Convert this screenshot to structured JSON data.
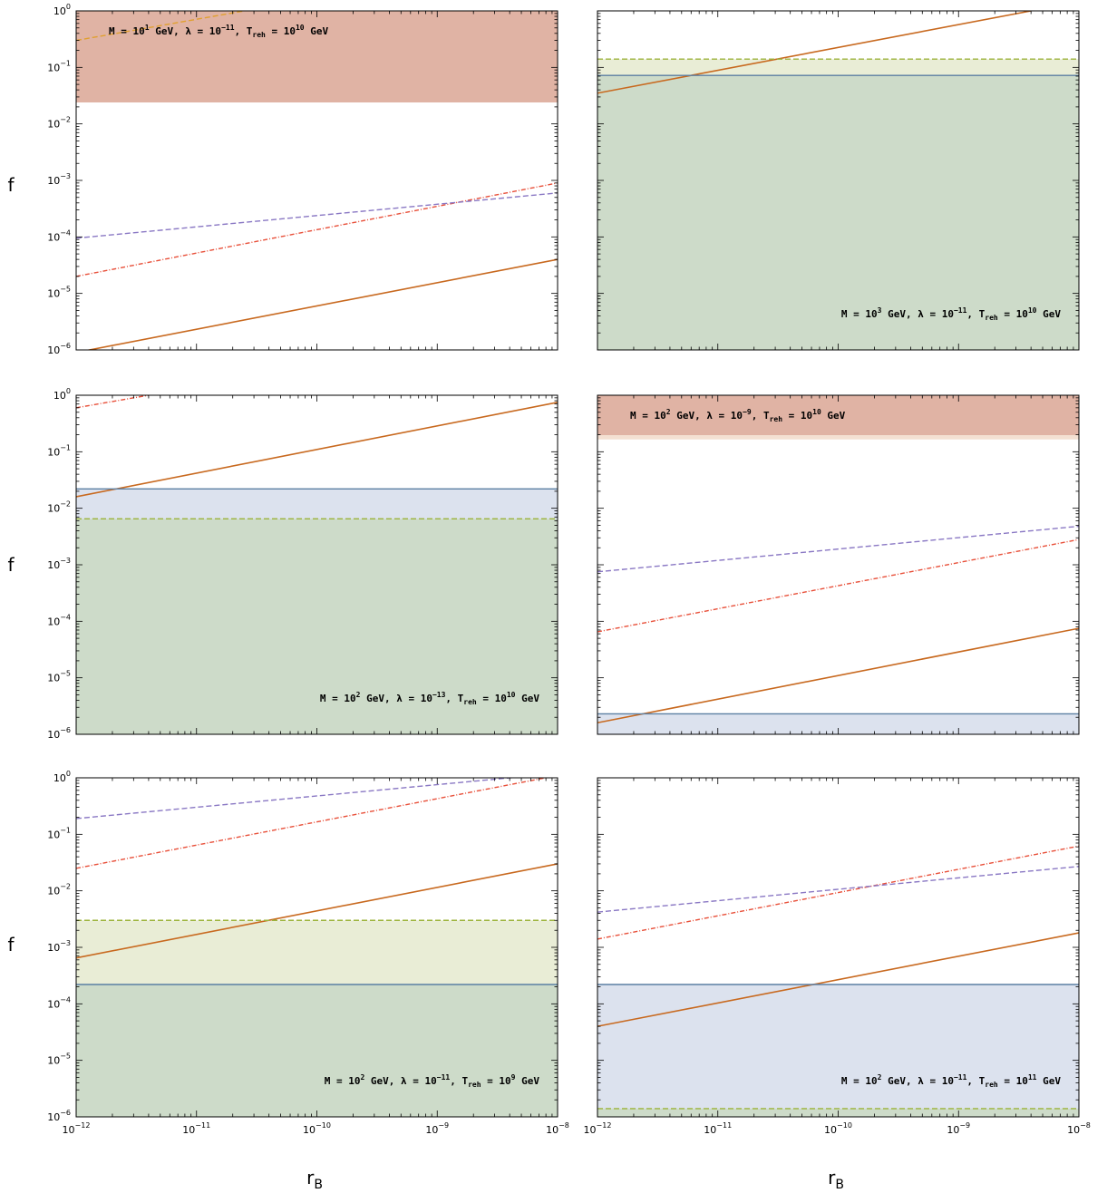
{
  "figure": {
    "xlabel_main": "r",
    "xlabel_sub": "B",
    "ylabel": "f"
  },
  "colors": {
    "dark_region": "#e0b3a4",
    "orange_region": "#f0c4a8",
    "light_region": "#f4e0d2",
    "green_region": "#cddbc9",
    "blue_region": "#dce2ee",
    "lightgreen_region": "#e9edd6",
    "brown_line": "#c8691f",
    "red_dash": "#e8503a",
    "purple_dash": "#8a78c4",
    "green_dash": "#9cb33c",
    "blue_line": "#5b7fa3",
    "gold_dash": "#e0a030"
  },
  "chart_data": [
    {
      "type": "area",
      "xscale": "log",
      "yscale": "log",
      "xlim": [
        1e-12,
        1e-08
      ],
      "ylim": [
        1e-06,
        1
      ],
      "annotation": [
        "M = 10",
        "1",
        " GeV,  λ = 10",
        "−11",
        ",  T",
        "reh",
        " = 10",
        "10",
        " GeV"
      ],
      "annotation_pos": "top-left",
      "series": [
        {
          "kind": "line",
          "style": "brown-solid",
          "x": [
            1e-12,
            1e-08
          ],
          "y": [
            9e-07,
            4e-05
          ]
        },
        {
          "kind": "line",
          "style": "red-dashdot",
          "x": [
            1e-12,
            1e-08
          ],
          "y": [
            2e-05,
            0.0009
          ]
        },
        {
          "kind": "line",
          "style": "purple-dashed",
          "x": [
            1e-12,
            1e-08
          ],
          "y": [
            9.5e-05,
            0.0006
          ]
        },
        {
          "kind": "line",
          "style": "gold-dashed",
          "x": [
            1e-12,
            2.5e-11
          ],
          "y": [
            0.3,
            1
          ]
        }
      ]
    },
    {
      "type": "area",
      "xscale": "log",
      "yscale": "log",
      "xlim": [
        1e-12,
        1e-08
      ],
      "ylim": [
        1e-06,
        1
      ],
      "annotation": [
        "M = 10",
        "3",
        " GeV,  λ = 10",
        "−11",
        ",  T",
        "reh",
        " = 10",
        "10",
        " GeV"
      ],
      "annotation_pos": "bottom-right",
      "series": [
        {
          "kind": "line",
          "style": "brown-solid",
          "x": [
            1e-12,
            4e-09
          ],
          "y": [
            0.035,
            1
          ]
        },
        {
          "kind": "hline",
          "style": "blue-solid",
          "y": 0.072
        },
        {
          "kind": "hline",
          "style": "green-dashed",
          "y": 0.14
        }
      ]
    },
    {
      "type": "area",
      "xscale": "log",
      "yscale": "log",
      "xlim": [
        1e-12,
        1e-08
      ],
      "ylim": [
        1e-06,
        1
      ],
      "annotation": [
        "M = 10",
        "2",
        " GeV,  λ = 10",
        "−13",
        ",  T",
        "reh",
        " = 10",
        "10",
        " GeV"
      ],
      "annotation_pos": "bottom-right",
      "series": [
        {
          "kind": "line",
          "style": "brown-solid",
          "x": [
            1e-12,
            1e-08
          ],
          "y": [
            0.016,
            0.75
          ]
        },
        {
          "kind": "line",
          "style": "red-dashdot",
          "x": [
            1e-12,
            4e-12
          ],
          "y": [
            0.6,
            1
          ]
        },
        {
          "kind": "hline",
          "style": "blue-solid",
          "y": 0.022
        },
        {
          "kind": "hline",
          "style": "green-dashed",
          "y": 0.0065
        }
      ]
    },
    {
      "type": "area",
      "xscale": "log",
      "yscale": "log",
      "xlim": [
        1e-12,
        1e-08
      ],
      "ylim": [
        1e-06,
        1
      ],
      "annotation": [
        "M = 10",
        "2",
        " GeV,  λ = 10",
        "−9",
        ",  T",
        "reh",
        " = 10",
        "10",
        " GeV"
      ],
      "annotation_pos": "top-left",
      "series": [
        {
          "kind": "line",
          "style": "brown-solid",
          "x": [
            1e-12,
            1e-08
          ],
          "y": [
            1.6e-06,
            7.5e-05
          ]
        },
        {
          "kind": "line",
          "style": "red-dashdot",
          "x": [
            1e-12,
            1e-08
          ],
          "y": [
            6.5e-05,
            0.0028
          ]
        },
        {
          "kind": "line",
          "style": "purple-dashed",
          "x": [
            1e-12,
            1e-08
          ],
          "y": [
            0.00075,
            0.0048
          ]
        },
        {
          "kind": "hline",
          "style": "blue-solid",
          "y": 2.3e-06
        }
      ]
    },
    {
      "type": "area",
      "xscale": "log",
      "yscale": "log",
      "xlim": [
        1e-12,
        1e-08
      ],
      "ylim": [
        1e-06,
        1
      ],
      "annotation": [
        "M = 10",
        "2",
        " GeV,  λ = 10",
        "−11",
        ",  T",
        "reh",
        " = 10",
        "9",
        " GeV"
      ],
      "annotation_pos": "bottom-right",
      "series": [
        {
          "kind": "line",
          "style": "brown-solid",
          "x": [
            1e-12,
            1e-08
          ],
          "y": [
            0.00065,
            0.03
          ]
        },
        {
          "kind": "line",
          "style": "red-dashdot",
          "x": [
            1e-12,
            1e-08
          ],
          "y": [
            0.025,
            1.1
          ]
        },
        {
          "kind": "line",
          "style": "purple-dashed",
          "x": [
            1e-12,
            1e-08
          ],
          "y": [
            0.19,
            1.2
          ]
        },
        {
          "kind": "hline",
          "style": "blue-solid",
          "y": 0.00022
        },
        {
          "kind": "hline",
          "style": "green-dashed",
          "y": 0.003
        }
      ]
    },
    {
      "type": "area",
      "xscale": "log",
      "yscale": "log",
      "xlim": [
        1e-12,
        1e-08
      ],
      "ylim": [
        1e-06,
        1
      ],
      "annotation": [
        "M = 10",
        "2",
        " GeV,  λ = 10",
        "−11",
        ",  T",
        "reh",
        " = 10",
        "11",
        " GeV"
      ],
      "annotation_pos": "bottom-right",
      "series": [
        {
          "kind": "line",
          "style": "brown-solid",
          "x": [
            1e-12,
            1e-08
          ],
          "y": [
            4e-05,
            0.0018
          ]
        },
        {
          "kind": "line",
          "style": "red-dashdot",
          "x": [
            1e-12,
            1e-08
          ],
          "y": [
            0.0014,
            0.062
          ]
        },
        {
          "kind": "line",
          "style": "purple-dashed",
          "x": [
            1e-12,
            1e-08
          ],
          "y": [
            0.0042,
            0.027
          ]
        },
        {
          "kind": "hline",
          "style": "blue-solid",
          "y": 0.00022
        },
        {
          "kind": "hline",
          "style": "green-dashed",
          "y": 1.4e-06
        }
      ]
    }
  ],
  "axis_ticks": {
    "y": [
      {
        "base": "10",
        "exp": "0"
      },
      {
        "base": "10",
        "exp": "−1"
      },
      {
        "base": "10",
        "exp": "−2"
      },
      {
        "base": "10",
        "exp": "−3"
      },
      {
        "base": "10",
        "exp": "−4"
      },
      {
        "base": "10",
        "exp": "−5"
      },
      {
        "base": "10",
        "exp": "−6"
      }
    ],
    "x": [
      {
        "base": "10",
        "exp": "−12"
      },
      {
        "base": "10",
        "exp": "−11"
      },
      {
        "base": "10",
        "exp": "−10"
      },
      {
        "base": "10",
        "exp": "−9"
      },
      {
        "base": "10",
        "exp": "−8"
      }
    ]
  }
}
